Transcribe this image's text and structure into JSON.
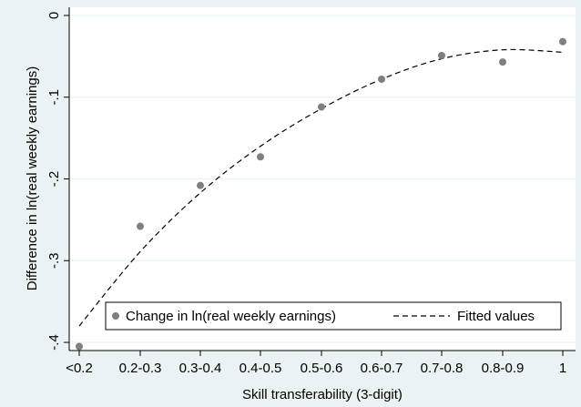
{
  "chart_data": {
    "type": "scatter",
    "xlabel": "Skill transferability (3-digit)",
    "ylabel": "Difference in ln(real weekly earnings)",
    "categories": [
      "<0.2",
      "0.2-0.3",
      "0.3-0.4",
      "0.4-0.5",
      "0.5-0.6",
      "0.6-0.7",
      "0.7-0.8",
      "0.8-0.9",
      "1"
    ],
    "ylim": [
      -0.41,
      0.01
    ],
    "yticks": [
      0,
      -0.1,
      -0.2,
      -0.3,
      -0.4
    ],
    "ytick_labels": [
      "0",
      "-.1",
      "-.2",
      "-.3",
      "-.4"
    ],
    "series": [
      {
        "name": "Change in ln(real weekly earnings)",
        "kind": "points",
        "color": "#7f7f7f",
        "values": [
          -0.405,
          -0.258,
          -0.208,
          -0.173,
          -0.112,
          -0.078,
          -0.049,
          -0.057,
          -0.032
        ]
      },
      {
        "name": "Fitted values",
        "kind": "dashed-line",
        "color": "#000000",
        "values": [
          -0.38,
          -0.289,
          -0.217,
          -0.16,
          -0.114,
          -0.078,
          -0.053,
          -0.042,
          -0.045
        ]
      }
    ],
    "grid": "horizontal",
    "legend_position": "bottom-inside",
    "plot_background": "#ffffff",
    "outer_background": "#eaf2f3",
    "grid_color": "#eaf2f3"
  }
}
